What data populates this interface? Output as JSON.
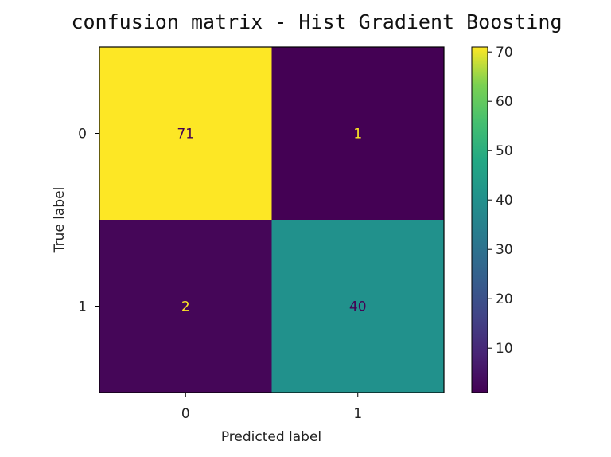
{
  "chart_data": {
    "type": "heatmap",
    "title": "confusion matrix - Hist Gradient Boosting",
    "xlabel": "Predicted label",
    "ylabel": "True label",
    "x_categories": [
      "0",
      "1"
    ],
    "y_categories": [
      "0",
      "1"
    ],
    "matrix": [
      [
        71,
        1
      ],
      [
        2,
        40
      ]
    ],
    "colormap": "viridis",
    "colorbar": {
      "range": [
        1,
        71
      ],
      "ticks": [
        10,
        20,
        30,
        40,
        50,
        60,
        70
      ]
    },
    "colors": {
      "low": "#440154",
      "high": "#fde725",
      "text_on_dark": "#fde725",
      "text_on_light": "#440154"
    },
    "grid": false
  }
}
